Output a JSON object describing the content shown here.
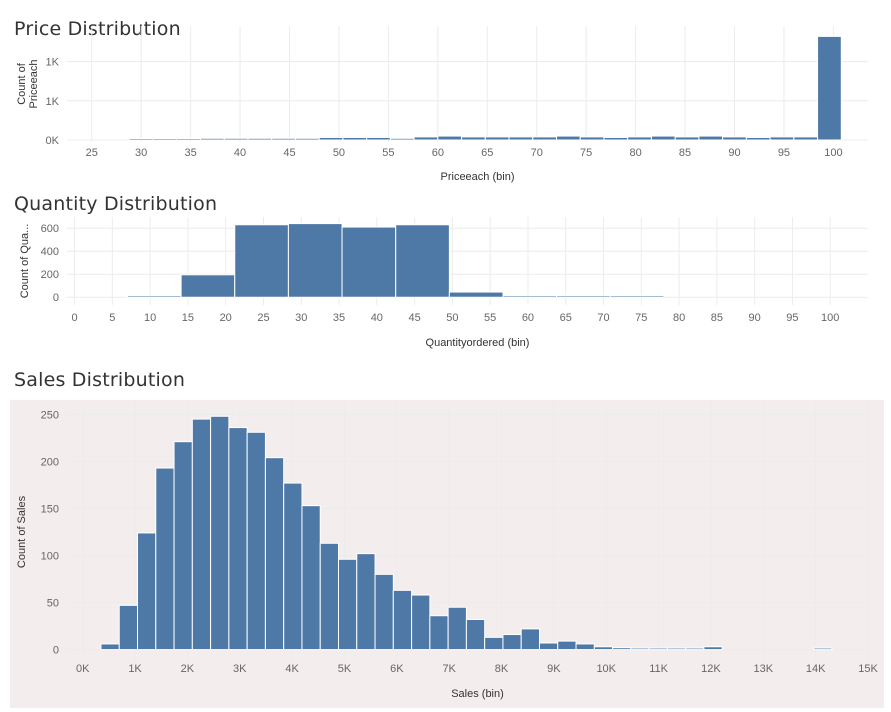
{
  "charts": {
    "price": {
      "title": "Price Distribution"
    },
    "quantity": {
      "title": "Quantity Distribution"
    },
    "sales": {
      "title": "Sales Distribution"
    }
  },
  "chart_data": [
    {
      "id": "price",
      "type": "bar",
      "title": "Price Distribution",
      "xlabel": "Priceeach (bin)",
      "ylabel": "Count of Priceeach",
      "ylabel_lines": [
        "Count of",
        "Priceeach"
      ],
      "x_ticks": [
        "25",
        "30",
        "35",
        "40",
        "45",
        "50",
        "55",
        "60",
        "65",
        "70",
        "75",
        "80",
        "85",
        "90",
        "95",
        "100"
      ],
      "x_tick_values": [
        25,
        30,
        35,
        40,
        45,
        50,
        55,
        60,
        65,
        70,
        75,
        80,
        85,
        90,
        95,
        100
      ],
      "y_ticks": [
        "0K",
        "1K",
        "1K"
      ],
      "y_tick_values": [
        0,
        700,
        1400
      ],
      "xlim": [
        22.5,
        103.5
      ],
      "ylim": [
        0,
        2000
      ],
      "bin_width": 2.4,
      "bins": [
        {
          "x": 28.8,
          "value": 15
        },
        {
          "x": 31.2,
          "value": 15
        },
        {
          "x": 33.6,
          "value": 15
        },
        {
          "x": 36.0,
          "value": 30
        },
        {
          "x": 38.4,
          "value": 30
        },
        {
          "x": 40.8,
          "value": 30
        },
        {
          "x": 43.2,
          "value": 30
        },
        {
          "x": 45.6,
          "value": 30
        },
        {
          "x": 48.0,
          "value": 45
        },
        {
          "x": 50.4,
          "value": 45
        },
        {
          "x": 52.8,
          "value": 45
        },
        {
          "x": 55.2,
          "value": 30
        },
        {
          "x": 57.6,
          "value": 55
        },
        {
          "x": 60.0,
          "value": 70
        },
        {
          "x": 62.4,
          "value": 55
        },
        {
          "x": 64.8,
          "value": 55
        },
        {
          "x": 67.2,
          "value": 55
        },
        {
          "x": 69.6,
          "value": 55
        },
        {
          "x": 72.0,
          "value": 70
        },
        {
          "x": 74.4,
          "value": 55
        },
        {
          "x": 76.8,
          "value": 45
        },
        {
          "x": 79.2,
          "value": 55
        },
        {
          "x": 81.6,
          "value": 70
        },
        {
          "x": 84.0,
          "value": 55
        },
        {
          "x": 86.4,
          "value": 70
        },
        {
          "x": 88.8,
          "value": 55
        },
        {
          "x": 91.2,
          "value": 45
        },
        {
          "x": 93.6,
          "value": 55
        },
        {
          "x": 96.0,
          "value": 55
        },
        {
          "x": 98.4,
          "value": 1850
        }
      ]
    },
    {
      "id": "quantity",
      "type": "bar",
      "title": "Quantity Distribution",
      "xlabel": "Quantityordered (bin)",
      "ylabel": "Count of Qua...",
      "x_ticks": [
        "0",
        "5",
        "10",
        "15",
        "20",
        "25",
        "30",
        "35",
        "40",
        "45",
        "50",
        "55",
        "60",
        "65",
        "70",
        "75",
        "80",
        "85",
        "90",
        "95",
        "100"
      ],
      "x_tick_values": [
        0,
        5,
        10,
        15,
        20,
        25,
        30,
        35,
        40,
        45,
        50,
        55,
        60,
        65,
        70,
        75,
        80,
        85,
        90,
        95,
        100
      ],
      "y_ticks": [
        "0",
        "200",
        "400",
        "600"
      ],
      "y_tick_values": [
        0,
        200,
        400,
        600
      ],
      "xlim": [
        -1,
        105
      ],
      "ylim": [
        -50,
        680
      ],
      "bin_width": 7.1,
      "bins": [
        {
          "x": 7.0,
          "value": 5
        },
        {
          "x": 14.1,
          "value": 195
        },
        {
          "x": 21.2,
          "value": 630
        },
        {
          "x": 28.3,
          "value": 640
        },
        {
          "x": 35.4,
          "value": 610
        },
        {
          "x": 42.5,
          "value": 630
        },
        {
          "x": 49.6,
          "value": 45
        },
        {
          "x": 56.7,
          "value": 5
        },
        {
          "x": 63.8,
          "value": 2
        },
        {
          "x": 70.9,
          "value": 2
        }
      ]
    },
    {
      "id": "sales",
      "type": "bar",
      "title": "Sales Distribution",
      "xlabel": "Sales (bin)",
      "ylabel": "Count of Sales",
      "background": "#f4eded",
      "x_ticks": [
        "0K",
        "1K",
        "2K",
        "3K",
        "4K",
        "5K",
        "6K",
        "7K",
        "8K",
        "9K",
        "10K",
        "11K",
        "12K",
        "13K",
        "14K",
        "15K"
      ],
      "x_tick_values": [
        0,
        1000,
        2000,
        3000,
        4000,
        5000,
        6000,
        7000,
        8000,
        9000,
        10000,
        11000,
        12000,
        13000,
        14000,
        15000
      ],
      "y_ticks": [
        "0",
        "50",
        "100",
        "150",
        "200",
        "250"
      ],
      "y_tick_values": [
        0,
        50,
        100,
        150,
        200,
        250
      ],
      "xlim": [
        -300,
        15000
      ],
      "ylim": [
        -10,
        260
      ],
      "bin_width": 349,
      "bins": [
        {
          "x": 349,
          "value": 6
        },
        {
          "x": 698,
          "value": 47
        },
        {
          "x": 1047,
          "value": 124
        },
        {
          "x": 1396,
          "value": 193
        },
        {
          "x": 1745,
          "value": 221
        },
        {
          "x": 2094,
          "value": 245
        },
        {
          "x": 2443,
          "value": 248
        },
        {
          "x": 2792,
          "value": 236
        },
        {
          "x": 3141,
          "value": 231
        },
        {
          "x": 3490,
          "value": 204
        },
        {
          "x": 3839,
          "value": 177
        },
        {
          "x": 4188,
          "value": 153
        },
        {
          "x": 4537,
          "value": 113
        },
        {
          "x": 4886,
          "value": 96
        },
        {
          "x": 5235,
          "value": 102
        },
        {
          "x": 5584,
          "value": 80
        },
        {
          "x": 5933,
          "value": 63
        },
        {
          "x": 6282,
          "value": 58
        },
        {
          "x": 6631,
          "value": 36
        },
        {
          "x": 6980,
          "value": 45
        },
        {
          "x": 7329,
          "value": 32
        },
        {
          "x": 7678,
          "value": 13
        },
        {
          "x": 8027,
          "value": 16
        },
        {
          "x": 8376,
          "value": 22
        },
        {
          "x": 8725,
          "value": 7
        },
        {
          "x": 9074,
          "value": 9
        },
        {
          "x": 9423,
          "value": 6
        },
        {
          "x": 9772,
          "value": 3
        },
        {
          "x": 10121,
          "value": 2
        },
        {
          "x": 10470,
          "value": 1
        },
        {
          "x": 10819,
          "value": 1
        },
        {
          "x": 11168,
          "value": 1
        },
        {
          "x": 11517,
          "value": 1
        },
        {
          "x": 11866,
          "value": 3
        },
        {
          "x": 13962,
          "value": 1
        }
      ]
    }
  ]
}
